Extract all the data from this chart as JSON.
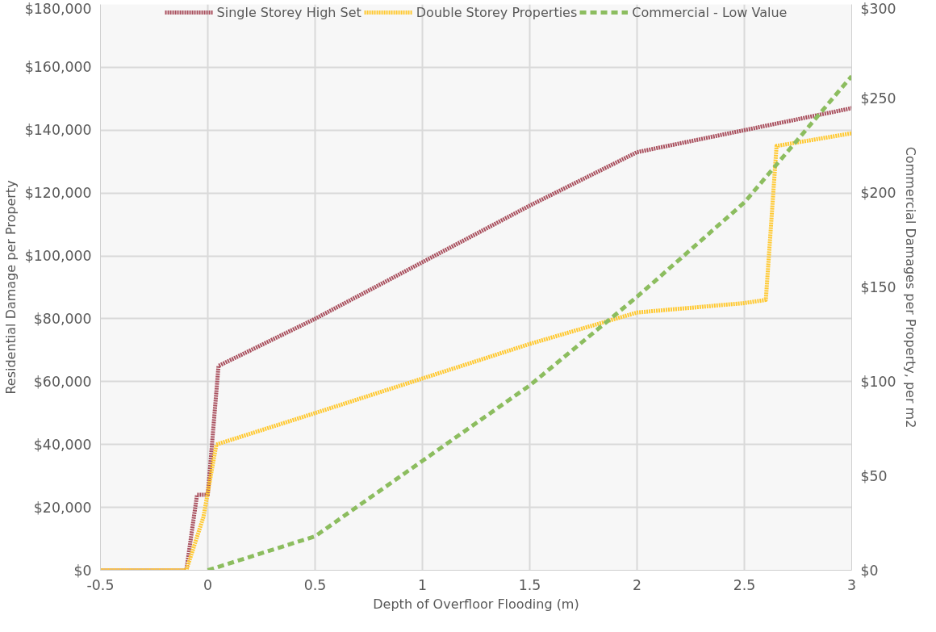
{
  "chart_data": {
    "type": "line",
    "xlabel": "Depth of Overfloor Flooding (m)",
    "ylabel": "Residential Damage per Property",
    "y2label": "Commercial Damages per Property, per m2",
    "xlim": [
      -0.5,
      3
    ],
    "xticks": [
      {
        "value": -0.5,
        "label": "-0.5"
      },
      0,
      0.5,
      1,
      1.5,
      2,
      2.5,
      3
    ],
    "ylim": [
      0,
      180000
    ],
    "yticks": [
      {
        "value": 0,
        "label": "$0"
      },
      {
        "value": 20000,
        "label": "$20,000"
      },
      {
        "value": 40000,
        "label": "$40,000"
      },
      {
        "value": 60000,
        "label": "$60,000"
      },
      {
        "value": 80000,
        "label": "$80,000"
      },
      {
        "value": 100000,
        "label": "$100,000"
      },
      {
        "value": 120000,
        "label": "$120,000"
      },
      {
        "value": 140000,
        "label": "$140,000"
      },
      {
        "value": 160000,
        "label": "$160,000"
      },
      {
        "value": 180000,
        "label": "$180,000"
      }
    ],
    "y2lim": [
      0,
      300
    ],
    "y2ticks": [
      {
        "value": 0,
        "label": "$0"
      },
      {
        "value": 50,
        "label": "$50"
      },
      {
        "value": 100,
        "label": "$100"
      },
      {
        "value": 150,
        "label": "$150"
      },
      {
        "value": 200,
        "label": "$200"
      },
      {
        "value": 250,
        "label": "$250"
      },
      {
        "value": 300,
        "label": "$300"
      }
    ],
    "grid": true,
    "legend": "top",
    "marker": "none",
    "series": [
      {
        "name": "Single Storey High Set",
        "color": "#a9505e",
        "line_style": "dotted",
        "x": [
          -0.5,
          -0.1,
          -0.05,
          0,
          0.05,
          0.5,
          1,
          1.5,
          2,
          2.5,
          3
        ],
        "values": [
          0,
          0,
          24000,
          24000,
          65000,
          80000,
          98000,
          116000,
          133000,
          140000,
          147000
        ]
      },
      {
        "name": "Double Storey Properties",
        "color": "#ffc931",
        "line_style": "dotted",
        "x": [
          -0.5,
          -0.1,
          -0.02,
          0.04,
          0.5,
          1,
          1.5,
          2,
          2.5,
          2.6,
          2.65,
          3
        ],
        "values": [
          0,
          0,
          17000,
          40000,
          50000,
          61000,
          72000,
          82000,
          85000,
          86000,
          135000,
          139000
        ]
      },
      {
        "name": "Commercial - Low Value",
        "color": "#8cbd5f",
        "line_style": "dashed",
        "axis": "y2",
        "x": [
          0,
          0.5,
          1,
          1.5,
          2,
          2.5,
          3
        ],
        "values": [
          0,
          18,
          58,
          98,
          145,
          195,
          262
        ]
      }
    ]
  }
}
